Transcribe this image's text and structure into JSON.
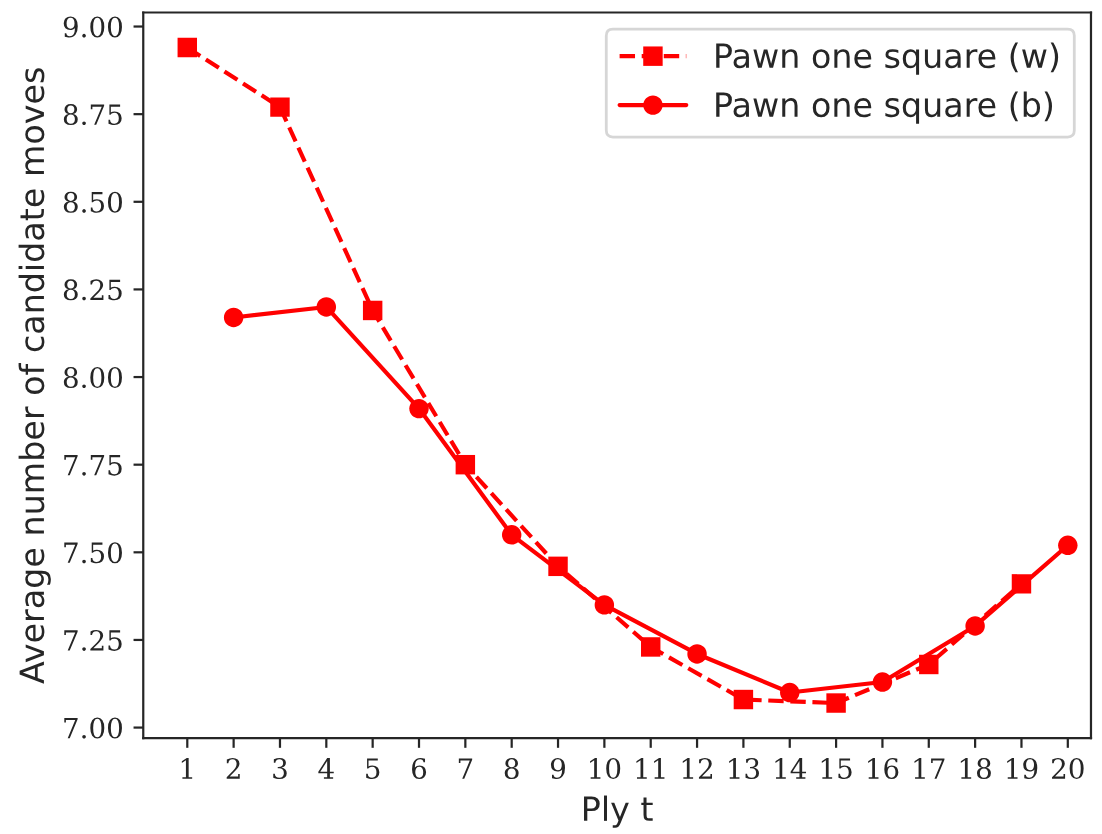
{
  "chart_data": {
    "type": "line",
    "xlabel": "Ply t",
    "ylabel": "Average number of candidate moves",
    "xlim": [
      0.05,
      20.5
    ],
    "ylim": [
      6.97,
      9.04
    ],
    "xticks": [
      1,
      2,
      3,
      4,
      5,
      6,
      7,
      8,
      9,
      10,
      11,
      12,
      13,
      14,
      15,
      16,
      17,
      18,
      19,
      20
    ],
    "yticks": [
      {
        "value": 7,
        "label": "7.00"
      },
      {
        "value": 7.25,
        "label": "7.25"
      },
      {
        "value": 7.5,
        "label": "7.50"
      },
      {
        "value": 7.75,
        "label": "7.75"
      },
      {
        "value": 8,
        "label": "8.00"
      },
      {
        "value": 8.25,
        "label": "8.25"
      },
      {
        "value": 8.5,
        "label": "8.50"
      },
      {
        "value": 8.75,
        "label": "8.75"
      },
      {
        "value": 9,
        "label": "9.00"
      }
    ],
    "legend": "top right",
    "grid": false,
    "series": [
      {
        "name": "Pawn one square (w)",
        "color": "#ff0000",
        "marker": "square",
        "line_style": "dashed",
        "x": [
          1,
          3,
          5,
          7,
          9,
          11,
          13,
          15,
          17,
          19
        ],
        "values": [
          8.94,
          8.77,
          8.19,
          7.75,
          7.46,
          7.23,
          7.08,
          7.07,
          7.18,
          7.41
        ]
      },
      {
        "name": "Pawn one square (b)",
        "color": "#ff0000",
        "marker": "circle",
        "line_style": "solid",
        "x": [
          2,
          4,
          6,
          8,
          10,
          12,
          14,
          16,
          18,
          20
        ],
        "values": [
          8.17,
          8.2,
          7.91,
          7.55,
          7.35,
          7.21,
          7.1,
          7.13,
          7.29,
          7.52
        ]
      }
    ]
  }
}
